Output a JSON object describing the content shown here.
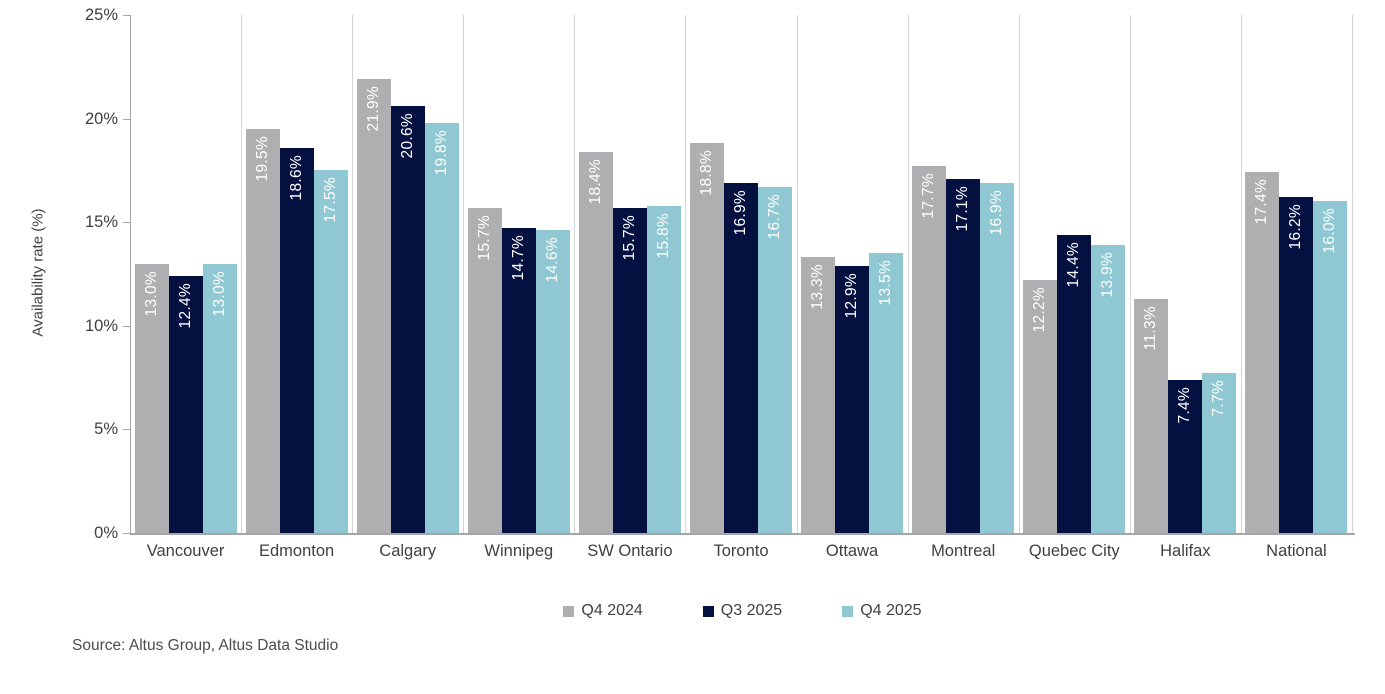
{
  "chart_data": {
    "type": "bar",
    "title": "",
    "ylabel": "Availability rate (%)",
    "xlabel": "",
    "ylim": [
      0,
      25
    ],
    "ytick_labels": [
      "0%",
      "5%",
      "10%",
      "15%",
      "20%",
      "25%"
    ],
    "ytick_values": [
      0,
      5,
      10,
      15,
      20,
      25
    ],
    "grid": "vertical-category-separators",
    "legend_position": "bottom",
    "value_label_format": "one-decimal-percent",
    "categories": [
      "Vancouver",
      "Edmonton",
      "Calgary",
      "Winnipeg",
      "SW Ontario",
      "Toronto",
      "Ottawa",
      "Montreal",
      "Quebec City",
      "Halifax",
      "National"
    ],
    "series": [
      {
        "name": "Q4 2024",
        "color": "#afafb1",
        "values": [
          13.0,
          19.5,
          21.9,
          15.7,
          18.4,
          18.8,
          13.3,
          17.7,
          12.2,
          11.3,
          17.4
        ]
      },
      {
        "name": "Q3 2025",
        "color": "#041140",
        "values": [
          12.4,
          18.6,
          20.6,
          14.7,
          15.7,
          16.9,
          12.9,
          17.1,
          14.4,
          7.4,
          16.2
        ]
      },
      {
        "name": "Q4 2025",
        "color": "#8fc8d2",
        "values": [
          13.0,
          17.5,
          19.8,
          14.6,
          15.8,
          16.7,
          13.5,
          16.9,
          13.9,
          7.7,
          16.0
        ]
      }
    ],
    "source": "Source: Altus Group, Altus Data Studio"
  },
  "colors": {
    "axis_line": "#a6a6a6",
    "gridline": "#d5d5d5",
    "axis_text": "#404040",
    "bar_value_text": "#ffffff"
  }
}
